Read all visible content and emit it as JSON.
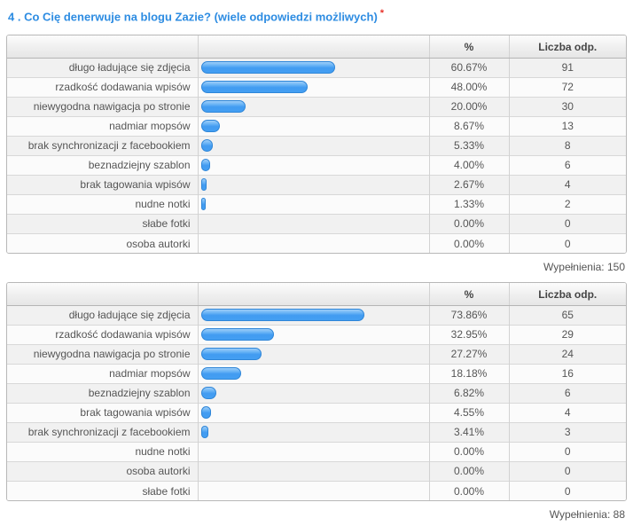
{
  "question": {
    "title": "4 . Co Cię denerwuje na blogu Zazie? (wiele odpowiedzi możliwych)",
    "required_marker": "*"
  },
  "columns": {
    "percent": "%",
    "count": "Liczba odp."
  },
  "bar_color": "#449ff2",
  "title_color": "#2d8ce2",
  "tables": [
    {
      "rows": [
        {
          "label": "długo ładujące się zdjęcia",
          "percent": 60.67,
          "percent_text": "60.67%",
          "count": "91"
        },
        {
          "label": "rzadkość dodawania wpisów",
          "percent": 48.0,
          "percent_text": "48.00%",
          "count": "72"
        },
        {
          "label": "niewygodna nawigacja po stronie",
          "percent": 20.0,
          "percent_text": "20.00%",
          "count": "30"
        },
        {
          "label": "nadmiar mopsów",
          "percent": 8.67,
          "percent_text": "8.67%",
          "count": "13"
        },
        {
          "label": "brak synchronizacji z facebookiem",
          "percent": 5.33,
          "percent_text": "5.33%",
          "count": "8"
        },
        {
          "label": "beznadziejny szablon",
          "percent": 4.0,
          "percent_text": "4.00%",
          "count": "6"
        },
        {
          "label": "brak tagowania wpisów",
          "percent": 2.67,
          "percent_text": "2.67%",
          "count": "4"
        },
        {
          "label": "nudne notki",
          "percent": 1.33,
          "percent_text": "1.33%",
          "count": "2"
        },
        {
          "label": "słabe fotki",
          "percent": 0,
          "percent_text": "0.00%",
          "count": "0"
        },
        {
          "label": "osoba autorki",
          "percent": 0,
          "percent_text": "0.00%",
          "count": "0"
        }
      ],
      "footer": "Wypełnienia: 150"
    },
    {
      "rows": [
        {
          "label": "długo ładujące się zdjęcia",
          "percent": 73.86,
          "percent_text": "73.86%",
          "count": "65"
        },
        {
          "label": "rzadkość dodawania wpisów",
          "percent": 32.95,
          "percent_text": "32.95%",
          "count": "29"
        },
        {
          "label": "niewygodna nawigacja po stronie",
          "percent": 27.27,
          "percent_text": "27.27%",
          "count": "24"
        },
        {
          "label": "nadmiar mopsów",
          "percent": 18.18,
          "percent_text": "18.18%",
          "count": "16"
        },
        {
          "label": "beznadziejny szablon",
          "percent": 6.82,
          "percent_text": "6.82%",
          "count": "6"
        },
        {
          "label": "brak tagowania wpisów",
          "percent": 4.55,
          "percent_text": "4.55%",
          "count": "4"
        },
        {
          "label": "brak synchronizacji z facebookiem",
          "percent": 3.41,
          "percent_text": "3.41%",
          "count": "3"
        },
        {
          "label": "nudne notki",
          "percent": 0,
          "percent_text": "0.00%",
          "count": "0"
        },
        {
          "label": "osoba autorki",
          "percent": 0,
          "percent_text": "0.00%",
          "count": "0"
        },
        {
          "label": "słabe fotki",
          "percent": 0,
          "percent_text": "0.00%",
          "count": "0"
        }
      ],
      "footer": "Wypełnienia: 88"
    }
  ],
  "chart_data": [
    {
      "type": "bar",
      "orientation": "horizontal",
      "title": "4 . Co Cię denerwuje na blogu Zazie? (wiele odpowiedzi możliwych)",
      "categories": [
        "długo ładujące się zdjęcia",
        "rzadkość dodawania wpisów",
        "niewygodna nawigacja po stronie",
        "nadmiar mopsów",
        "brak synchronizacji z facebookiem",
        "beznadziejny szablon",
        "brak tagowania wpisów",
        "nudne notki",
        "słabe fotki",
        "osoba autorki"
      ],
      "series": [
        {
          "name": "%",
          "values": [
            60.67,
            48.0,
            20.0,
            8.67,
            5.33,
            4.0,
            2.67,
            1.33,
            0.0,
            0.0
          ]
        },
        {
          "name": "Liczba odp.",
          "values": [
            91,
            72,
            30,
            13,
            8,
            6,
            4,
            2,
            0,
            0
          ]
        }
      ],
      "xlim": [
        0,
        100
      ],
      "grid": false,
      "annotations": [
        "Wypełnienia: 150"
      ]
    },
    {
      "type": "bar",
      "orientation": "horizontal",
      "title": "4 . Co Cię denerwuje na blogu Zazie? (wiele odpowiedzi możliwych)",
      "categories": [
        "długo ładujące się zdjęcia",
        "rzadkość dodawania wpisów",
        "niewygodna nawigacja po stronie",
        "nadmiar mopsów",
        "beznadziejny szablon",
        "brak tagowania wpisów",
        "brak synchronizacji z facebookiem",
        "nudne notki",
        "osoba autorki",
        "słabe fotki"
      ],
      "series": [
        {
          "name": "%",
          "values": [
            73.86,
            32.95,
            27.27,
            18.18,
            6.82,
            4.55,
            3.41,
            0.0,
            0.0,
            0.0
          ]
        },
        {
          "name": "Liczba odp.",
          "values": [
            65,
            29,
            24,
            16,
            6,
            4,
            3,
            0,
            0,
            0
          ]
        }
      ],
      "xlim": [
        0,
        100
      ],
      "grid": false,
      "annotations": [
        "Wypełnienia: 88"
      ]
    }
  ]
}
